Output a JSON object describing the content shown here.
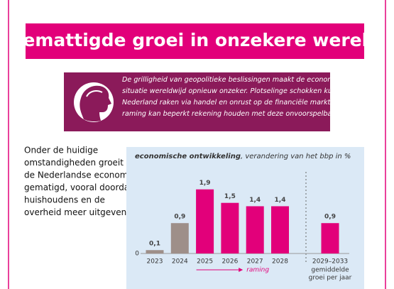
{
  "header": {
    "title": "Gemattigde groei in onzekere wereld"
  },
  "intro": {
    "lines": [
      "De grilligheid van geopolitieke beslissingen maakt de economische",
      "situatie wereldwijd opnieuw onzeker. Plotselinge schokken kunnen",
      "Nederland raken via handel en onrust op de financiële markten. De",
      "raming kan beperkt rekening houden met deze onvoorspelbaarheid"
    ]
  },
  "body": {
    "lines": [
      "Onder de huidige",
      "omstandigheden groeit",
      "de Nederlandse economie",
      "gematigd, vooral doordat",
      "huishoudens en de",
      "overheid meer uitgeven"
    ]
  },
  "chart_data": {
    "type": "bar",
    "title": "economische ontwikkeling",
    "subtitle": ", verandering van het bbp in %",
    "categories": [
      "2023",
      "2024",
      "2025",
      "2026",
      "2027",
      "2028",
      "2029–2033"
    ],
    "category_note": [
      "gemiddelde",
      "groei per jaar"
    ],
    "values": [
      0.1,
      0.9,
      1.9,
      1.5,
      1.4,
      1.4,
      0.9
    ],
    "value_labels": [
      "0,1",
      "0,9",
      "1,9",
      "1,5",
      "1,4",
      "1,4",
      "0,9"
    ],
    "colors": [
      "#9e8f89",
      "#9e8f89",
      "#e2007a",
      "#e2007a",
      "#e2007a",
      "#e2007a",
      "#e2007a"
    ],
    "forecast_label": "raming",
    "ylim": [
      0,
      2.0
    ],
    "yticks": [
      0
    ]
  }
}
